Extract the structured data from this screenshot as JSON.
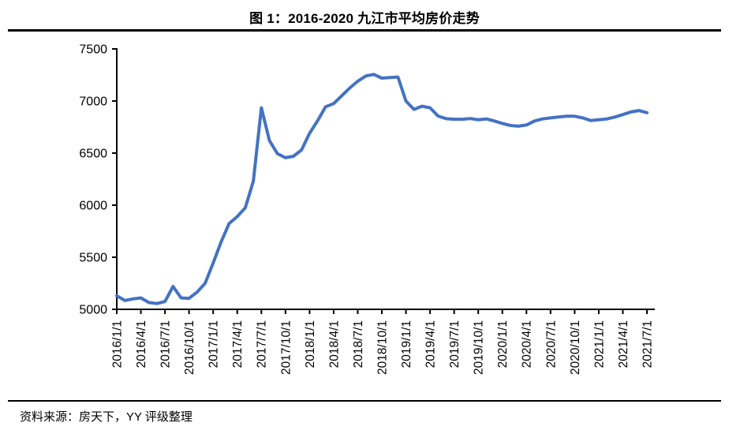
{
  "footer": {
    "text": "资料来源：房天下，YY 评级整理"
  },
  "chart_data": {
    "type": "line",
    "title": "图 1：2016-2020 九江市平均房价走势",
    "x_start": "2016/1",
    "x_interval": "monthly",
    "x_tick_labels": [
      "2016/1/1",
      "2016/4/1",
      "2016/7/1",
      "2016/10/1",
      "2017/1/1",
      "2017/4/1",
      "2017/7/1",
      "2017/10/1",
      "2018/1/1",
      "2018/4/1",
      "2018/7/1",
      "2018/10/1",
      "2019/1/1",
      "2019/4/1",
      "2019/7/1",
      "2019/10/1",
      "2020/1/1",
      "2020/4/1",
      "2020/7/1",
      "2020/10/1",
      "2021/1/1",
      "2021/4/1",
      "2021/7/1"
    ],
    "y_ticks": [
      5000,
      5500,
      6000,
      6500,
      7000,
      7500
    ],
    "ylim": [
      5000,
      7500
    ],
    "grid": false,
    "legend": false,
    "line_color": "#4472C4",
    "axis_color": "#000000",
    "series": [
      {
        "values": [
          5130,
          5085,
          5100,
          5110,
          5065,
          5055,
          5075,
          5220,
          5110,
          5105,
          5165,
          5250,
          5445,
          5650,
          5825,
          5890,
          5975,
          6230,
          6935,
          6620,
          6495,
          6455,
          6470,
          6530,
          6690,
          6810,
          6945,
          6975,
          7050,
          7125,
          7190,
          7240,
          7255,
          7220,
          7225,
          7230,
          7000,
          6920,
          6950,
          6935,
          6855,
          6830,
          6825,
          6825,
          6832,
          6820,
          6828,
          6808,
          6785,
          6765,
          6758,
          6770,
          6808,
          6828,
          6838,
          6846,
          6854,
          6854,
          6838,
          6813,
          6820,
          6828,
          6846,
          6870,
          6895,
          6908,
          6888
        ]
      }
    ]
  }
}
